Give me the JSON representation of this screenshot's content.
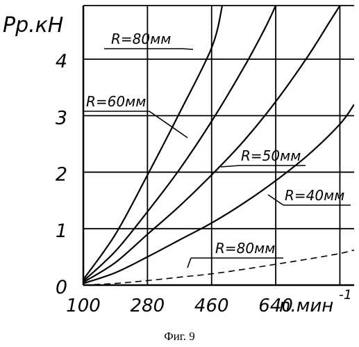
{
  "chart_data": {
    "type": "line",
    "y_axis_title": "Pp.кН",
    "x_axis_unit": "n.мин",
    "x_axis_unit_exponent": "-1",
    "x_ticks": [
      100,
      280,
      460,
      640
    ],
    "y_ticks": [
      0,
      1,
      2,
      3,
      4
    ],
    "xlim": [
      100,
      860
    ],
    "ylim": [
      0,
      4.95
    ],
    "grid": true,
    "series": [
      {
        "name": "R=80мм",
        "style": "solid",
        "points": [
          [
            100,
            0.1
          ],
          [
            190,
            0.9
          ],
          [
            280,
            1.95
          ],
          [
            370,
            3.05
          ],
          [
            460,
            4.2
          ],
          [
            490,
            4.95
          ]
        ]
      },
      {
        "name": "R=60мм",
        "style": "solid",
        "points": [
          [
            100,
            0.07
          ],
          [
            190,
            0.6
          ],
          [
            280,
            1.3
          ],
          [
            370,
            2.05
          ],
          [
            460,
            2.9
          ],
          [
            550,
            3.85
          ],
          [
            610,
            4.55
          ],
          [
            640,
            4.95
          ]
        ]
      },
      {
        "name": "R=50мм",
        "style": "solid",
        "points": [
          [
            100,
            0.05
          ],
          [
            190,
            0.4
          ],
          [
            280,
            0.9
          ],
          [
            370,
            1.4
          ],
          [
            460,
            1.95
          ],
          [
            550,
            2.55
          ],
          [
            640,
            3.25
          ],
          [
            730,
            4.05
          ],
          [
            790,
            4.65
          ],
          [
            820,
            4.95
          ]
        ]
      },
      {
        "name": "R=40мм",
        "style": "solid",
        "points": [
          [
            100,
            0.03
          ],
          [
            190,
            0.22
          ],
          [
            280,
            0.5
          ],
          [
            370,
            0.8
          ],
          [
            460,
            1.1
          ],
          [
            550,
            1.45
          ],
          [
            640,
            1.85
          ],
          [
            730,
            2.3
          ],
          [
            820,
            2.85
          ],
          [
            860,
            3.2
          ]
        ]
      },
      {
        "name": "R=80мм",
        "style": "dashed",
        "points": [
          [
            100,
            0.0
          ],
          [
            190,
            0.03
          ],
          [
            280,
            0.08
          ],
          [
            370,
            0.14
          ],
          [
            460,
            0.2
          ],
          [
            550,
            0.28
          ],
          [
            640,
            0.37
          ],
          [
            730,
            0.46
          ],
          [
            820,
            0.56
          ],
          [
            860,
            0.62
          ]
        ]
      }
    ]
  },
  "caption": "Фиг. 9"
}
